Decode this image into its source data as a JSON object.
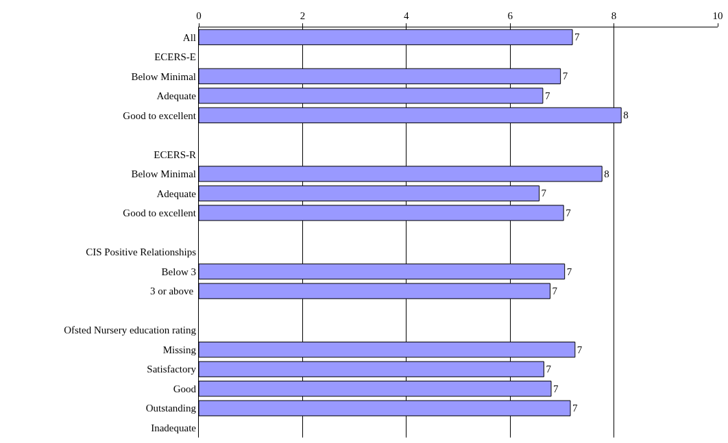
{
  "chart_data": {
    "type": "bar",
    "orientation": "horizontal",
    "categories": [
      "All",
      "ECERS-E",
      "Below Minimal",
      "Adequate",
      "Good to excellent",
      null,
      "ECERS-R",
      "Below Minimal",
      "Adequate",
      "Good to excellent",
      null,
      "CIS Positive Relationships",
      "Below 3",
      "3 or above ",
      null,
      "Ofsted Nursery education rating",
      "Missing",
      "Satisfactory",
      "Good",
      "Outstanding",
      "Inadequate"
    ],
    "series": [
      {
        "color": "#9999ff",
        "values": [
          7.2,
          null,
          6.97,
          6.63,
          8.14,
          null,
          null,
          7.77,
          6.56,
          7.03,
          null,
          null,
          7.05,
          6.77,
          null,
          null,
          7.25,
          6.65,
          6.79,
          7.16,
          null
        ],
        "value_labels": [
          "7",
          null,
          "7",
          "7",
          "8",
          null,
          null,
          "8",
          "7",
          "7",
          null,
          null,
          "7",
          "7",
          null,
          null,
          "7",
          "7",
          "7",
          "7",
          null
        ]
      }
    ],
    "xlim": [
      0,
      10
    ],
    "xticks": [
      0,
      2,
      4,
      6,
      8,
      10
    ],
    "grid": "x"
  }
}
